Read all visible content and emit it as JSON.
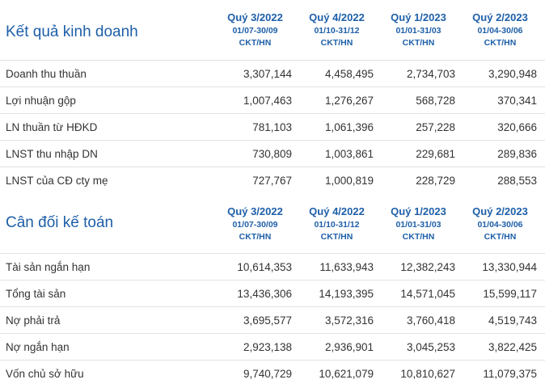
{
  "business": {
    "title": "Kết quả kinh doanh",
    "columns": [
      {
        "quarter": "Quý 3/2022",
        "dates": "01/07-30/09",
        "exchange": "CKT/HN"
      },
      {
        "quarter": "Quý 4/2022",
        "dates": "01/10-31/12",
        "exchange": "CKT/HN"
      },
      {
        "quarter": "Quý 1/2023",
        "dates": "01/01-31/03",
        "exchange": "CKT/HN"
      },
      {
        "quarter": "Quý 2/2023",
        "dates": "01/04-30/06",
        "exchange": "CKT/HN"
      }
    ],
    "rows": [
      {
        "label": "Doanh thu thuần",
        "values": [
          "3,307,144",
          "4,458,495",
          "2,734,703",
          "3,290,948"
        ]
      },
      {
        "label": "Lợi nhuận gộp",
        "values": [
          "1,007,463",
          "1,276,267",
          "568,728",
          "370,341"
        ]
      },
      {
        "label": "LN thuần từ HĐKD",
        "values": [
          "781,103",
          "1,061,396",
          "257,228",
          "320,666"
        ]
      },
      {
        "label": "LNST thu nhập DN",
        "values": [
          "730,809",
          "1,003,861",
          "229,681",
          "289,836"
        ]
      },
      {
        "label": "LNST của CĐ cty mẹ",
        "values": [
          "727,767",
          "1,000,819",
          "228,729",
          "288,553"
        ]
      }
    ]
  },
  "balance": {
    "title": "Cân đối kế toán",
    "columns": [
      {
        "quarter": "Quý 3/2022",
        "dates": "01/07-30/09",
        "exchange": "CKT/HN"
      },
      {
        "quarter": "Quý 4/2022",
        "dates": "01/10-31/12",
        "exchange": "CKT/HN"
      },
      {
        "quarter": "Quý 1/2023",
        "dates": "01/01-31/03",
        "exchange": "CKT/HN"
      },
      {
        "quarter": "Quý 2/2023",
        "dates": "01/04-30/06",
        "exchange": "CKT/HN"
      }
    ],
    "rows": [
      {
        "label": "Tài sản ngắn hạn",
        "values": [
          "10,614,353",
          "11,633,943",
          "12,382,243",
          "13,330,944"
        ]
      },
      {
        "label": "Tổng tài sản",
        "values": [
          "13,436,306",
          "14,193,395",
          "14,571,045",
          "15,599,117"
        ]
      },
      {
        "label": "Nợ phải trả",
        "values": [
          "3,695,577",
          "3,572,316",
          "3,760,418",
          "4,519,743"
        ]
      },
      {
        "label": "Nợ ngắn hạn",
        "values": [
          "2,923,138",
          "2,936,901",
          "3,045,253",
          "3,822,425"
        ]
      },
      {
        "label": "Vốn chủ sở hữu",
        "values": [
          "9,740,729",
          "10,621,079",
          "10,810,627",
          "11,079,375"
        ]
      }
    ]
  }
}
